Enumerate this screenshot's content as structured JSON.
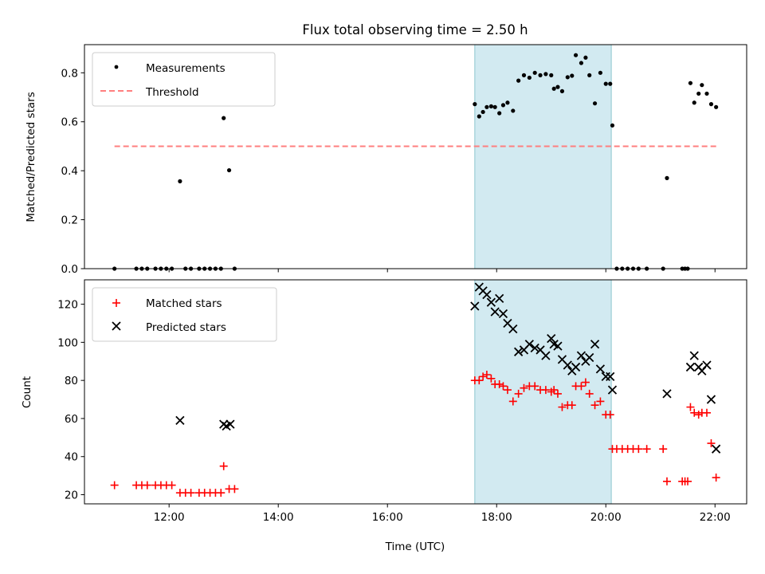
{
  "chart_data": [
    {
      "type": "scatter",
      "title": "Flux total observing time = 2.50 h",
      "ylabel": "Matched/Predicted stars",
      "xlabel": "",
      "xlim": [
        10.45,
        22.58
      ],
      "ylim": [
        0.0,
        0.915
      ],
      "xticks": [
        12,
        14,
        16,
        18,
        20,
        22
      ],
      "yticks": [
        0.0,
        0.2,
        0.4,
        0.6,
        0.8
      ],
      "ytick_labels": [
        "0.0",
        "0.2",
        "0.4",
        "0.6",
        "0.8"
      ],
      "shaded_interval": [
        17.6,
        20.1
      ],
      "shade_color": "#add8e6",
      "legend_position": "upper left",
      "legend": [
        {
          "label": "Measurements",
          "marker": "dot",
          "color": "#000000"
        },
        {
          "label": "Threshold",
          "marker": "dashed-line",
          "color": "#ff7f7f"
        }
      ],
      "threshold": {
        "x": [
          11.0,
          22.05
        ],
        "y": 0.5
      },
      "series": [
        {
          "name": "Measurements",
          "color": "#000000",
          "points": [
            [
              11.0,
              0.0
            ],
            [
              11.4,
              0.0
            ],
            [
              11.5,
              0.0
            ],
            [
              11.6,
              0.0
            ],
            [
              11.75,
              0.0
            ],
            [
              11.85,
              0.0
            ],
            [
              11.95,
              0.0
            ],
            [
              12.05,
              0.0
            ],
            [
              12.2,
              0.357
            ],
            [
              12.3,
              0.0
            ],
            [
              12.4,
              0.0
            ],
            [
              12.55,
              0.0
            ],
            [
              12.65,
              0.0
            ],
            [
              12.75,
              0.0
            ],
            [
              12.85,
              0.0
            ],
            [
              12.95,
              0.0
            ],
            [
              13.0,
              0.615
            ],
            [
              13.1,
              0.402
            ],
            [
              13.2,
              0.0
            ],
            [
              17.6,
              0.672
            ],
            [
              17.68,
              0.622
            ],
            [
              17.75,
              0.64
            ],
            [
              17.82,
              0.66
            ],
            [
              17.9,
              0.663
            ],
            [
              17.97,
              0.66
            ],
            [
              18.05,
              0.635
            ],
            [
              18.12,
              0.668
            ],
            [
              18.2,
              0.678
            ],
            [
              18.3,
              0.645
            ],
            [
              18.4,
              0.768
            ],
            [
              18.5,
              0.79
            ],
            [
              18.6,
              0.78
            ],
            [
              18.7,
              0.8
            ],
            [
              18.8,
              0.79
            ],
            [
              18.9,
              0.795
            ],
            [
              19.0,
              0.79
            ],
            [
              19.05,
              0.735
            ],
            [
              19.12,
              0.742
            ],
            [
              19.2,
              0.725
            ],
            [
              19.3,
              0.782
            ],
            [
              19.38,
              0.788
            ],
            [
              19.45,
              0.872
            ],
            [
              19.55,
              0.84
            ],
            [
              19.63,
              0.862
            ],
            [
              19.7,
              0.79
            ],
            [
              19.8,
              0.675
            ],
            [
              19.9,
              0.8
            ],
            [
              20.0,
              0.755
            ],
            [
              20.08,
              0.755
            ],
            [
              20.12,
              0.585
            ],
            [
              20.2,
              0.0
            ],
            [
              20.3,
              0.0
            ],
            [
              20.4,
              0.0
            ],
            [
              20.5,
              0.0
            ],
            [
              20.6,
              0.0
            ],
            [
              20.75,
              0.0
            ],
            [
              21.05,
              0.0
            ],
            [
              21.12,
              0.37
            ],
            [
              21.4,
              0.0
            ],
            [
              21.45,
              0.0
            ],
            [
              21.5,
              0.0
            ],
            [
              21.55,
              0.758
            ],
            [
              21.62,
              0.678
            ],
            [
              21.7,
              0.715
            ],
            [
              21.76,
              0.75
            ],
            [
              21.85,
              0.715
            ],
            [
              21.93,
              0.672
            ],
            [
              22.02,
              0.66
            ]
          ]
        }
      ]
    },
    {
      "type": "scatter",
      "title": "",
      "xlabel": "Time (UTC)",
      "ylabel": "Count",
      "xlim": [
        10.45,
        22.58
      ],
      "ylim": [
        15.2,
        132.8
      ],
      "xticks": [
        12,
        14,
        16,
        18,
        20,
        22
      ],
      "xtick_labels": [
        "12:00",
        "14:00",
        "16:00",
        "18:00",
        "20:00",
        "22:00"
      ],
      "yticks": [
        20,
        40,
        60,
        80,
        100,
        120
      ],
      "ytick_labels": [
        "20",
        "40",
        "60",
        "80",
        "100",
        "120"
      ],
      "shaded_interval": [
        17.6,
        20.1
      ],
      "shade_color": "#add8e6",
      "legend_position": "upper left",
      "legend": [
        {
          "label": "Matched stars",
          "marker": "plus",
          "color": "#ff0000"
        },
        {
          "label": "Predicted stars",
          "marker": "x",
          "color": "#000000"
        }
      ],
      "series": [
        {
          "name": "Matched stars",
          "color": "#ff0000",
          "marker": "plus",
          "points": [
            [
              11.0,
              25
            ],
            [
              11.4,
              25
            ],
            [
              11.5,
              25
            ],
            [
              11.6,
              25
            ],
            [
              11.75,
              25
            ],
            [
              11.85,
              25
            ],
            [
              11.95,
              25
            ],
            [
              12.05,
              25
            ],
            [
              12.2,
              21
            ],
            [
              12.3,
              21
            ],
            [
              12.4,
              21
            ],
            [
              12.55,
              21
            ],
            [
              12.65,
              21
            ],
            [
              12.75,
              21
            ],
            [
              12.85,
              21
            ],
            [
              12.95,
              21
            ],
            [
              13.0,
              35
            ],
            [
              13.1,
              23
            ],
            [
              13.2,
              23
            ],
            [
              17.6,
              80
            ],
            [
              17.68,
              80
            ],
            [
              17.75,
              82
            ],
            [
              17.82,
              83
            ],
            [
              17.9,
              81
            ],
            [
              17.97,
              78
            ],
            [
              18.05,
              78
            ],
            [
              18.12,
              77
            ],
            [
              18.2,
              75
            ],
            [
              18.3,
              69
            ],
            [
              18.4,
              73
            ],
            [
              18.5,
              76
            ],
            [
              18.6,
              77
            ],
            [
              18.7,
              77
            ],
            [
              18.8,
              75
            ],
            [
              18.9,
              75
            ],
            [
              19.0,
              74
            ],
            [
              19.05,
              75
            ],
            [
              19.12,
              73
            ],
            [
              19.2,
              66
            ],
            [
              19.3,
              67
            ],
            [
              19.38,
              67
            ],
            [
              19.45,
              77
            ],
            [
              19.55,
              77
            ],
            [
              19.63,
              79
            ],
            [
              19.7,
              73
            ],
            [
              19.8,
              67
            ],
            [
              19.9,
              69
            ],
            [
              20.0,
              62
            ],
            [
              20.08,
              62
            ],
            [
              20.12,
              44
            ],
            [
              20.2,
              44
            ],
            [
              20.3,
              44
            ],
            [
              20.4,
              44
            ],
            [
              20.5,
              44
            ],
            [
              20.6,
              44
            ],
            [
              20.75,
              44
            ],
            [
              21.05,
              44
            ],
            [
              21.12,
              27
            ],
            [
              21.4,
              27
            ],
            [
              21.45,
              27
            ],
            [
              21.5,
              27
            ],
            [
              21.55,
              66
            ],
            [
              21.62,
              63
            ],
            [
              21.7,
              62
            ],
            [
              21.76,
              63
            ],
            [
              21.85,
              63
            ],
            [
              21.93,
              47
            ],
            [
              22.02,
              29
            ]
          ]
        },
        {
          "name": "Predicted stars",
          "color": "#000000",
          "marker": "x",
          "points": [
            [
              12.2,
              59
            ],
            [
              13.0,
              57
            ],
            [
              13.05,
              56
            ],
            [
              13.12,
              57
            ],
            [
              17.6,
              119
            ],
            [
              17.68,
              129
            ],
            [
              17.75,
              127
            ],
            [
              17.82,
              125
            ],
            [
              17.9,
              121
            ],
            [
              17.97,
              116
            ],
            [
              18.05,
              123
            ],
            [
              18.12,
              115
            ],
            [
              18.2,
              110
            ],
            [
              18.3,
              107
            ],
            [
              18.4,
              95
            ],
            [
              18.5,
              96
            ],
            [
              18.6,
              99
            ],
            [
              18.7,
              97
            ],
            [
              18.8,
              96
            ],
            [
              18.9,
              93
            ],
            [
              19.0,
              102
            ],
            [
              19.05,
              99
            ],
            [
              19.12,
              98
            ],
            [
              19.2,
              91
            ],
            [
              19.3,
              88
            ],
            [
              19.38,
              85
            ],
            [
              19.45,
              87
            ],
            [
              19.55,
              93
            ],
            [
              19.63,
              90
            ],
            [
              19.7,
              92
            ],
            [
              19.8,
              99
            ],
            [
              19.9,
              86
            ],
            [
              20.0,
              82
            ],
            [
              20.08,
              82
            ],
            [
              20.12,
              75
            ],
            [
              21.12,
              73
            ],
            [
              21.55,
              87
            ],
            [
              21.62,
              93
            ],
            [
              21.7,
              87
            ],
            [
              21.76,
              85
            ],
            [
              21.85,
              88
            ],
            [
              21.93,
              70
            ],
            [
              22.02,
              44
            ]
          ]
        }
      ]
    }
  ]
}
